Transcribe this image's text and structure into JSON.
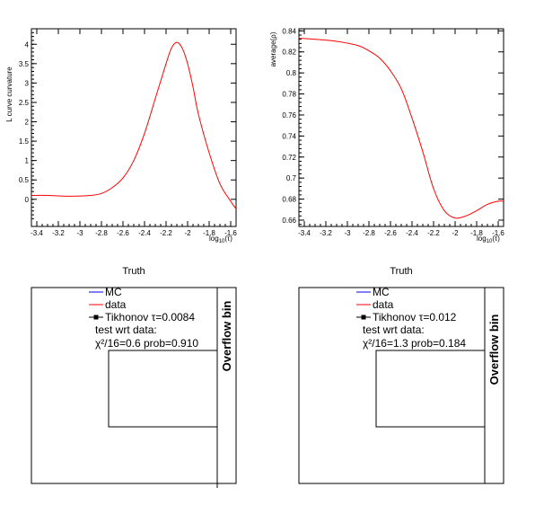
{
  "chart_data": [
    {
      "type": "line",
      "title": "",
      "xlabel": "log",
      "xlabel_sub": "10",
      "xlabel_arg": "(τ)",
      "ylabel": "L curve curvature",
      "xlim": [
        -3.45,
        -1.55
      ],
      "ylim": [
        -0.7,
        4.4
      ],
      "xticks": [
        "-3.4",
        "-3.2",
        "-3",
        "-2.8",
        "-2.6",
        "-2.4",
        "-2.2",
        "-2",
        "-1.8",
        "-1.6"
      ],
      "yticks": [
        "0",
        "0.5",
        "1",
        "1.5",
        "2",
        "2.5",
        "3",
        "3.5",
        "4"
      ],
      "series": [
        {
          "color": "#ff0000",
          "x": [
            -3.45,
            -3.3,
            -3.1,
            -2.9,
            -2.8,
            -2.7,
            -2.6,
            -2.5,
            -2.4,
            -2.3,
            -2.2,
            -2.15,
            -2.1,
            -2.05,
            -2.0,
            -1.95,
            -1.9,
            -1.8,
            -1.7,
            -1.6,
            -1.55
          ],
          "y": [
            0.1,
            0.1,
            0.08,
            0.1,
            0.15,
            0.3,
            0.55,
            1.0,
            1.7,
            2.6,
            3.5,
            3.9,
            4.05,
            3.9,
            3.5,
            2.9,
            2.2,
            1.2,
            0.4,
            -0.05,
            -0.25
          ]
        }
      ]
    },
    {
      "type": "line",
      "title": "",
      "xlabel": "log",
      "xlabel_sub": "10",
      "xlabel_arg": "(τ)",
      "ylabel": "average(ρ)",
      "xlim": [
        -3.45,
        -1.55
      ],
      "ylim": [
        0.654,
        0.842
      ],
      "xticks": [
        "-3.4",
        "-3.2",
        "-3",
        "-2.8",
        "-2.6",
        "-2.4",
        "-2.2",
        "-2",
        "-1.8",
        "-1.6"
      ],
      "yticks": [
        "0.66",
        "0.68",
        "0.7",
        "0.72",
        "0.74",
        "0.76",
        "0.78",
        "0.8",
        "0.82",
        "0.84"
      ],
      "series": [
        {
          "color": "#ff0000",
          "x": [
            -3.45,
            -3.3,
            -3.1,
            -2.9,
            -2.8,
            -2.7,
            -2.6,
            -2.5,
            -2.4,
            -2.3,
            -2.2,
            -2.1,
            -2.0,
            -1.9,
            -1.8,
            -1.7,
            -1.6,
            -1.55
          ],
          "y": [
            0.833,
            0.832,
            0.83,
            0.826,
            0.821,
            0.814,
            0.802,
            0.785,
            0.757,
            0.725,
            0.69,
            0.669,
            0.662,
            0.664,
            0.669,
            0.675,
            0.678,
            0.678
          ]
        }
      ]
    },
    {
      "type": "bar",
      "title": "Truth",
      "legend": [
        "MC",
        "data",
        "Tikhonov τ=0.0084"
      ],
      "legend_extra": [
        "test wrt data:",
        "χ²/16=0.6 prob=0.910"
      ],
      "overflow_label": "Overflow bin"
    },
    {
      "type": "bar",
      "title": "Truth",
      "legend": [
        "MC",
        "data",
        "Tikhonov τ=0.012"
      ],
      "legend_extra": [
        "test wrt data:",
        "χ²/16=1.3 prob=0.184"
      ],
      "overflow_label": "Overflow bin"
    }
  ],
  "colors": {
    "mc": "#0000ff",
    "data": "#ff0000",
    "tikhonov": "#000000"
  }
}
